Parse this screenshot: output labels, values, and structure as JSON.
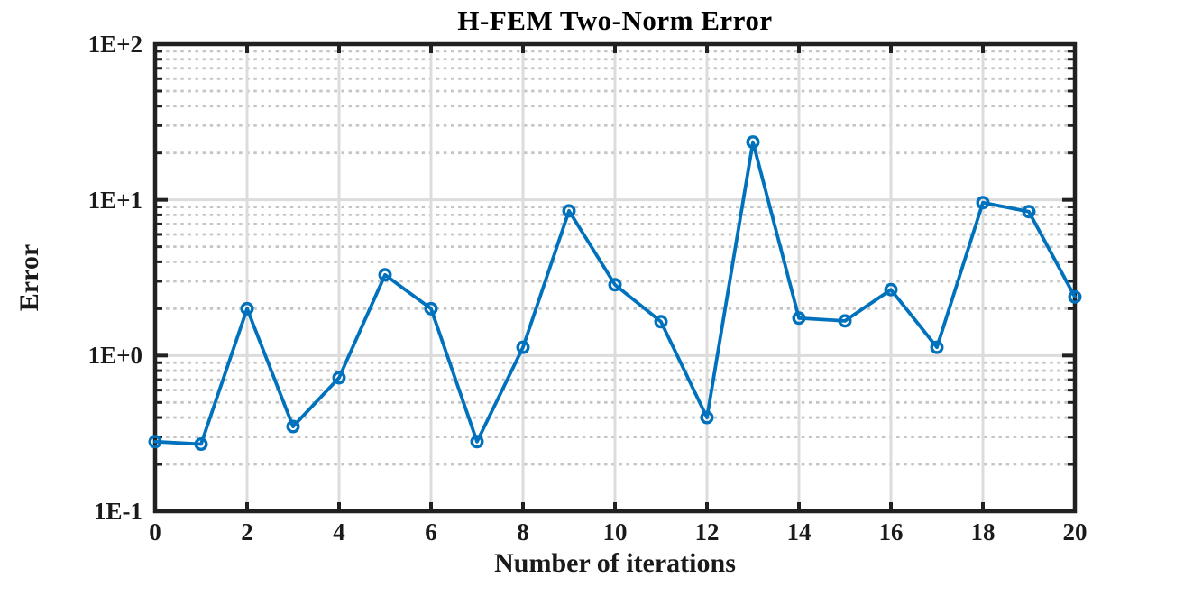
{
  "figure": {
    "title": "H-FEM Two-Norm Error",
    "x_axis_label": "Number of iterations",
    "y_axis_label": "Error"
  },
  "chart_data": {
    "type": "line",
    "title": "H-FEM Two-Norm Error",
    "xlabel": "Number of iterations",
    "ylabel": "Error",
    "yscale": "log",
    "xlim": [
      0,
      20
    ],
    "ylim": [
      0.1,
      100
    ],
    "x_ticks": [
      0,
      2,
      4,
      6,
      8,
      10,
      12,
      14,
      16,
      18,
      20
    ],
    "x_tick_labels": [
      "0",
      "2",
      "4",
      "6",
      "8",
      "10",
      "12",
      "14",
      "16",
      "18",
      "20"
    ],
    "y_ticks": [
      0.1,
      1,
      10,
      100
    ],
    "y_tick_labels": [
      "1E-1",
      "1E+0",
      "1E+1",
      "1E+2"
    ],
    "grid": {
      "major": true,
      "minor": true,
      "minor_style": "dotted"
    },
    "legend": null,
    "series": [
      {
        "name": "H-FEM two-norm error",
        "marker": "circle",
        "marker_fill": "none",
        "color": "#0072BD",
        "x": [
          0,
          1,
          2,
          3,
          4,
          5,
          6,
          7,
          8,
          9,
          10,
          11,
          12,
          13,
          14,
          15,
          16,
          17,
          18,
          19,
          20
        ],
        "y": [
          0.28,
          0.27,
          2.0,
          0.35,
          0.72,
          3.3,
          2.0,
          0.28,
          1.13,
          8.5,
          2.85,
          1.65,
          0.4,
          23.5,
          1.74,
          1.67,
          2.65,
          1.13,
          9.6,
          8.4,
          2.38
        ]
      }
    ]
  },
  "style": {
    "line_color": "#0072BD",
    "axis_color": "#212121",
    "major_grid_color": "#dcdcdc",
    "minor_grid_color": "#c5c5c5",
    "background_color": "#ffffff",
    "text_color": "#1a1a1a"
  }
}
